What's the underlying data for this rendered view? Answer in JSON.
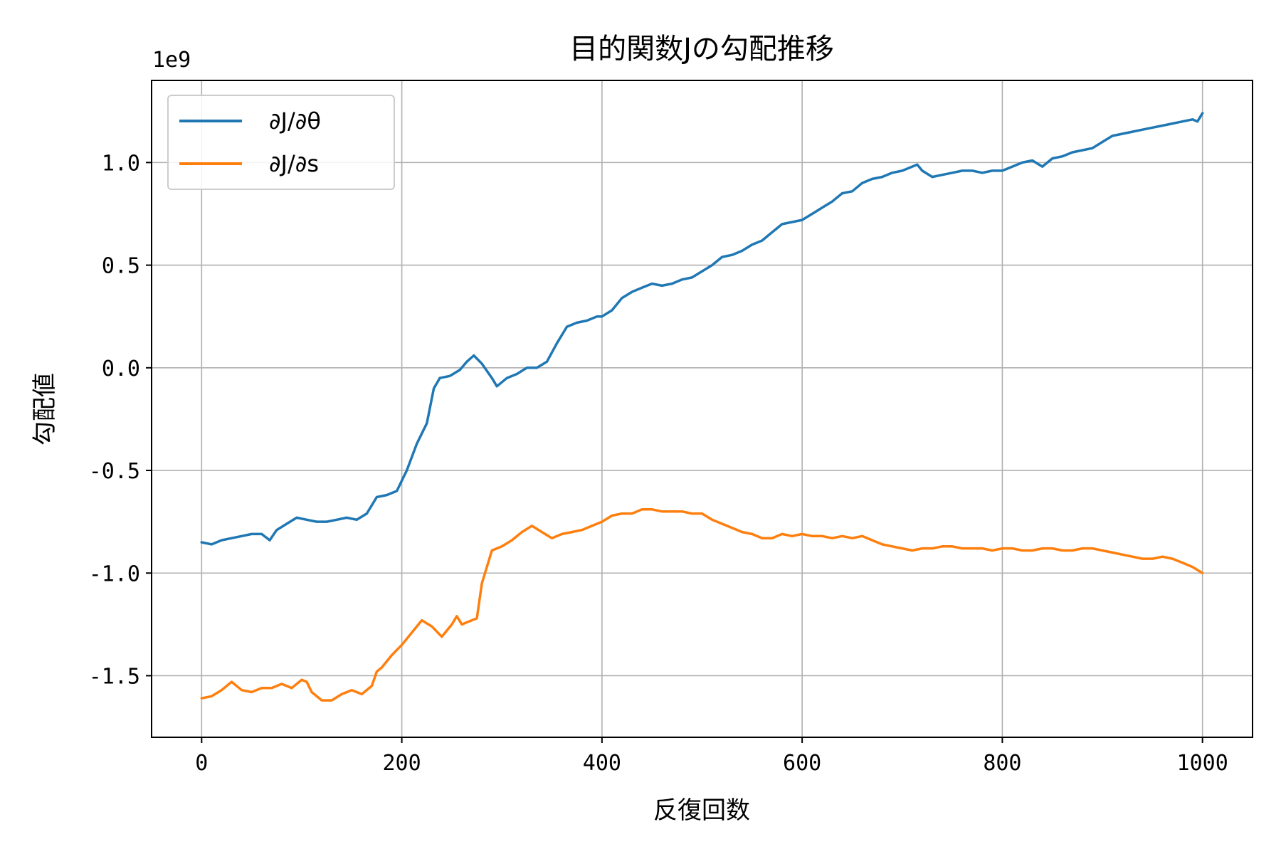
{
  "chart_data": {
    "type": "line",
    "title": "目的関数Jの勾配推移",
    "xlabel": "反復回数",
    "ylabel": "勾配値",
    "offset_label": "1e9",
    "scale_multiplier": 1000000000,
    "xlim": [
      -50,
      1050
    ],
    "ylim": [
      -1.8,
      1.4
    ],
    "x_ticks": [
      0,
      200,
      400,
      600,
      800,
      1000
    ],
    "x_tick_labels": [
      "0",
      "200",
      "400",
      "600",
      "800",
      "1000"
    ],
    "y_ticks": [
      -1.5,
      -1.0,
      -0.5,
      0.0,
      0.5,
      1.0
    ],
    "y_tick_labels": [
      "-1.5",
      "-1.0",
      "-0.5",
      "0.0",
      "0.5",
      "1.0"
    ],
    "grid": true,
    "legend_position": "upper-left",
    "series": [
      {
        "name": "∂J/∂θ",
        "color": "#1f77b4",
        "x": [
          0,
          10,
          20,
          30,
          40,
          50,
          60,
          68,
          75,
          85,
          95,
          105,
          115,
          125,
          135,
          145,
          155,
          165,
          175,
          185,
          195,
          205,
          215,
          225,
          232,
          238,
          248,
          258,
          265,
          272,
          280,
          290,
          295,
          305,
          315,
          325,
          335,
          345,
          355,
          365,
          375,
          385,
          395,
          400,
          410,
          420,
          430,
          440,
          450,
          460,
          470,
          480,
          490,
          500,
          510,
          520,
          530,
          540,
          550,
          560,
          570,
          580,
          590,
          600,
          610,
          620,
          630,
          640,
          650,
          660,
          670,
          680,
          690,
          700,
          710,
          715,
          720,
          730,
          740,
          750,
          760,
          770,
          780,
          790,
          800,
          810,
          820,
          830,
          840,
          850,
          860,
          870,
          880,
          890,
          900,
          910,
          920,
          930,
          940,
          950,
          960,
          970,
          980,
          990,
          995,
          1000
        ],
        "y": [
          -0.85,
          -0.86,
          -0.84,
          -0.83,
          -0.82,
          -0.81,
          -0.81,
          -0.84,
          -0.79,
          -0.76,
          -0.73,
          -0.74,
          -0.75,
          -0.75,
          -0.74,
          -0.73,
          -0.74,
          -0.71,
          -0.63,
          -0.62,
          -0.6,
          -0.5,
          -0.37,
          -0.27,
          -0.1,
          -0.05,
          -0.04,
          -0.01,
          0.03,
          0.06,
          0.02,
          -0.05,
          -0.09,
          -0.05,
          -0.03,
          0.0,
          0.0,
          0.03,
          0.12,
          0.2,
          0.22,
          0.23,
          0.25,
          0.25,
          0.28,
          0.34,
          0.37,
          0.39,
          0.41,
          0.4,
          0.41,
          0.43,
          0.44,
          0.47,
          0.5,
          0.54,
          0.55,
          0.57,
          0.6,
          0.62,
          0.66,
          0.7,
          0.71,
          0.72,
          0.75,
          0.78,
          0.81,
          0.85,
          0.86,
          0.9,
          0.92,
          0.93,
          0.95,
          0.96,
          0.98,
          0.99,
          0.96,
          0.93,
          0.94,
          0.95,
          0.96,
          0.96,
          0.95,
          0.96,
          0.96,
          0.98,
          1.0,
          1.01,
          0.98,
          1.02,
          1.03,
          1.05,
          1.06,
          1.07,
          1.1,
          1.13,
          1.14,
          1.15,
          1.16,
          1.17,
          1.18,
          1.19,
          1.2,
          1.21,
          1.2,
          1.24
        ]
      },
      {
        "name": "∂J/∂s",
        "color": "#ff7f0e",
        "x": [
          0,
          10,
          20,
          30,
          40,
          50,
          60,
          70,
          80,
          90,
          100,
          105,
          110,
          120,
          130,
          140,
          150,
          160,
          170,
          175,
          180,
          190,
          200,
          210,
          220,
          230,
          240,
          250,
          255,
          260,
          270,
          275,
          280,
          290,
          300,
          310,
          320,
          330,
          340,
          350,
          360,
          370,
          380,
          390,
          400,
          410,
          420,
          430,
          440,
          450,
          460,
          470,
          480,
          490,
          500,
          510,
          520,
          530,
          540,
          550,
          560,
          570,
          580,
          590,
          600,
          610,
          620,
          630,
          640,
          650,
          660,
          670,
          680,
          690,
          700,
          710,
          720,
          730,
          740,
          750,
          760,
          770,
          780,
          790,
          800,
          810,
          820,
          830,
          840,
          850,
          860,
          870,
          880,
          890,
          900,
          910,
          920,
          930,
          940,
          950,
          960,
          970,
          980,
          990,
          1000
        ],
        "y": [
          -1.61,
          -1.6,
          -1.57,
          -1.53,
          -1.57,
          -1.58,
          -1.56,
          -1.56,
          -1.54,
          -1.56,
          -1.52,
          -1.53,
          -1.58,
          -1.62,
          -1.62,
          -1.59,
          -1.57,
          -1.59,
          -1.55,
          -1.48,
          -1.46,
          -1.4,
          -1.35,
          -1.29,
          -1.23,
          -1.26,
          -1.31,
          -1.25,
          -1.21,
          -1.25,
          -1.23,
          -1.22,
          -1.05,
          -0.89,
          -0.87,
          -0.84,
          -0.8,
          -0.77,
          -0.8,
          -0.83,
          -0.81,
          -0.8,
          -0.79,
          -0.77,
          -0.75,
          -0.72,
          -0.71,
          -0.71,
          -0.69,
          -0.69,
          -0.7,
          -0.7,
          -0.7,
          -0.71,
          -0.71,
          -0.74,
          -0.76,
          -0.78,
          -0.8,
          -0.81,
          -0.83,
          -0.83,
          -0.81,
          -0.82,
          -0.81,
          -0.82,
          -0.82,
          -0.83,
          -0.82,
          -0.83,
          -0.82,
          -0.84,
          -0.86,
          -0.87,
          -0.88,
          -0.89,
          -0.88,
          -0.88,
          -0.87,
          -0.87,
          -0.88,
          -0.88,
          -0.88,
          -0.89,
          -0.88,
          -0.88,
          -0.89,
          -0.89,
          -0.88,
          -0.88,
          -0.89,
          -0.89,
          -0.88,
          -0.88,
          -0.89,
          -0.9,
          -0.91,
          -0.92,
          -0.93,
          -0.93,
          -0.92,
          -0.93,
          -0.95,
          -0.97,
          -1.0
        ]
      }
    ]
  }
}
